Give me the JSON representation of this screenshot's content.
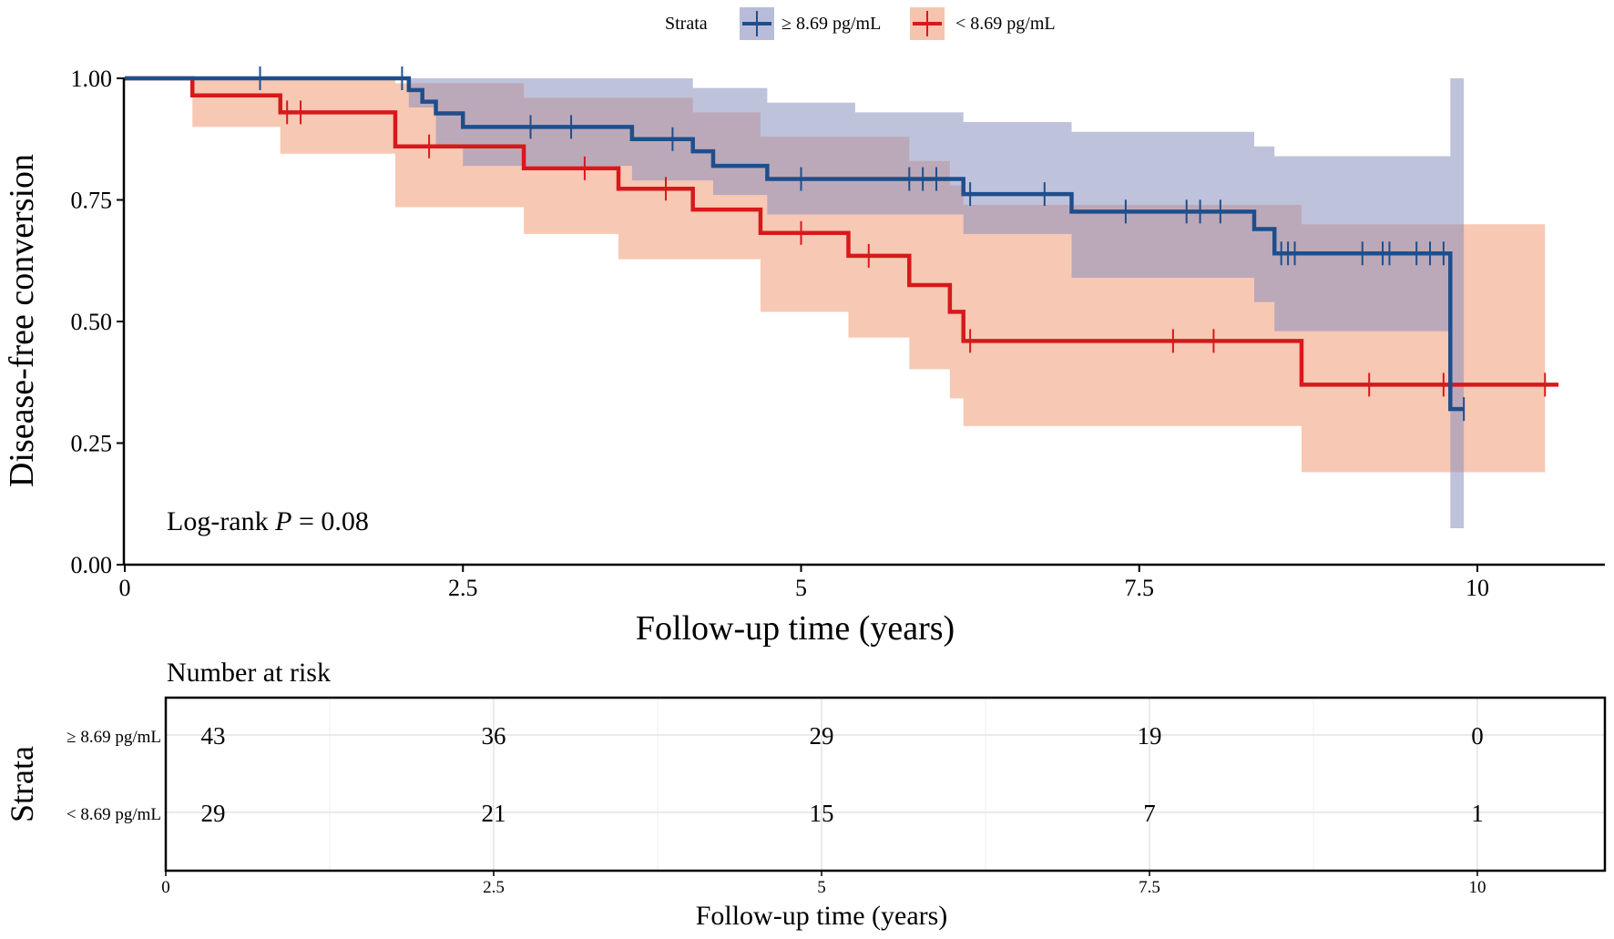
{
  "chart_data": [
    {
      "type": "line",
      "subtype": "kaplan-meier",
      "ylabel": "Disease-free conversion",
      "xlabel": "Follow-up time (years)",
      "xlim": [
        0,
        11
      ],
      "ylim": [
        0,
        1
      ],
      "x_ticks": [
        0,
        2.5,
        5,
        7.5,
        10
      ],
      "x_tick_labels": [
        "0",
        "2.5",
        "5",
        "7.5",
        "10"
      ],
      "y_ticks": [
        0,
        0.25,
        0.5,
        0.75,
        1
      ],
      "y_tick_labels": [
        "0.00",
        "0.25",
        "0.50",
        "0.75",
        "1.00"
      ],
      "annotation": {
        "prefix": "Log-rank ",
        "p_symbol": "P",
        "suffix": " = 0.08"
      },
      "legend": {
        "title": "Strata",
        "position": "top"
      },
      "series": [
        {
          "name": "≥ 8.69 pg/mL",
          "color": "#1f4e8c",
          "ci_color": "#8a8fbe",
          "steps": [
            [
              0,
              1.0
            ],
            [
              2.05,
              1.0
            ],
            [
              2.1,
              0.976
            ],
            [
              2.2,
              0.952
            ],
            [
              2.3,
              0.928
            ],
            [
              2.5,
              0.9
            ],
            [
              3.75,
              0.875
            ],
            [
              4.2,
              0.85
            ],
            [
              4.35,
              0.82
            ],
            [
              4.75,
              0.793
            ],
            [
              6.2,
              0.762
            ],
            [
              7.0,
              0.726
            ],
            [
              8.35,
              0.69
            ],
            [
              8.5,
              0.64
            ],
            [
              9.8,
              0.32
            ],
            [
              9.9,
              0.32
            ]
          ],
          "ci_upper": [
            [
              0,
              1.0
            ],
            [
              2.95,
              1.0
            ],
            [
              2.95,
              1.0
            ],
            [
              4.2,
              0.98
            ],
            [
              4.75,
              0.95
            ],
            [
              5.4,
              0.93
            ],
            [
              6.2,
              0.91
            ],
            [
              7.0,
              0.89
            ],
            [
              8.35,
              0.86
            ],
            [
              8.5,
              0.84
            ],
            [
              9.8,
              1.0
            ],
            [
              9.9,
              1.0
            ]
          ],
          "ci_lower": [
            [
              0,
              1.0
            ],
            [
              2.1,
              0.94
            ],
            [
              2.3,
              0.86
            ],
            [
              2.5,
              0.82
            ],
            [
              3.75,
              0.79
            ],
            [
              4.35,
              0.76
            ],
            [
              4.75,
              0.72
            ],
            [
              6.2,
              0.68
            ],
            [
              7.0,
              0.59
            ],
            [
              8.35,
              0.54
            ],
            [
              8.5,
              0.48
            ],
            [
              9.8,
              0.075
            ],
            [
              9.9,
              0.075
            ]
          ],
          "censor_times": [
            1.0,
            2.05,
            3.0,
            3.3,
            4.05,
            5.0,
            5.8,
            5.9,
            6.0,
            6.25,
            6.8,
            7.4,
            7.85,
            7.95,
            8.1,
            8.55,
            8.6,
            8.65,
            9.15,
            9.3,
            9.35,
            9.55,
            9.65,
            9.75,
            9.9
          ],
          "at_risk": [
            43,
            36,
            29,
            19,
            0
          ]
        },
        {
          "name": "< 8.69 pg/mL",
          "color": "#d7191c",
          "ci_color": "#f4b59a",
          "steps": [
            [
              0,
              1.0
            ],
            [
              0.5,
              0.965
            ],
            [
              1.15,
              0.93
            ],
            [
              2.0,
              0.86
            ],
            [
              2.95,
              0.815
            ],
            [
              3.65,
              0.773
            ],
            [
              4.2,
              0.73
            ],
            [
              4.7,
              0.682
            ],
            [
              5.35,
              0.635
            ],
            [
              5.8,
              0.575
            ],
            [
              6.1,
              0.52
            ],
            [
              6.2,
              0.46
            ],
            [
              8.7,
              0.37
            ],
            [
              10.6,
              0.37
            ]
          ],
          "ci_upper": [
            [
              0,
              1.0
            ],
            [
              2.0,
              1.0
            ],
            [
              2.0,
              0.99
            ],
            [
              2.95,
              0.96
            ],
            [
              4.2,
              0.93
            ],
            [
              4.7,
              0.88
            ],
            [
              5.8,
              0.83
            ],
            [
              6.1,
              0.78
            ],
            [
              6.2,
              0.74
            ],
            [
              8.7,
              0.7
            ],
            [
              10.5,
              0.7
            ]
          ],
          "ci_lower": [
            [
              0,
              1.0
            ],
            [
              0.5,
              0.9
            ],
            [
              1.15,
              0.845
            ],
            [
              2.0,
              0.735
            ],
            [
              2.95,
              0.68
            ],
            [
              3.65,
              0.628
            ],
            [
              4.7,
              0.52
            ],
            [
              5.35,
              0.467
            ],
            [
              5.8,
              0.402
            ],
            [
              6.1,
              0.342
            ],
            [
              6.2,
              0.285
            ],
            [
              8.7,
              0.19
            ],
            [
              10.5,
              0.19
            ]
          ],
          "censor_times": [
            1.2,
            1.3,
            2.25,
            3.4,
            4.0,
            5.0,
            5.5,
            6.25,
            7.75,
            8.05,
            9.2,
            9.75,
            10.5
          ],
          "at_risk": [
            29,
            21,
            15,
            7,
            1
          ]
        }
      ]
    },
    {
      "type": "table",
      "title": "Number at risk",
      "ylabel": "Strata",
      "xlabel": "Follow-up time (years)",
      "x_ticks": [
        0,
        2.5,
        5,
        7.5,
        10
      ],
      "x_tick_labels": [
        "0",
        "2.5",
        "5",
        "7.5",
        "10"
      ],
      "rows": [
        {
          "label": "≥ 8.69 pg/mL",
          "color": "#1f3c7a",
          "values": [
            "43",
            "36",
            "29",
            "19",
            "0"
          ]
        },
        {
          "label": "< 8.69 pg/mL",
          "color": "#c0392b",
          "values": [
            "29",
            "21",
            "15",
            "7",
            "1"
          ]
        }
      ]
    }
  ]
}
